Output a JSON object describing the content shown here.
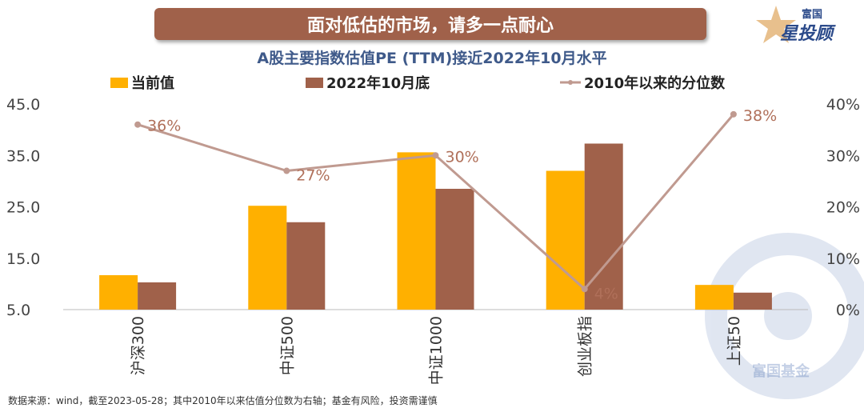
{
  "banner": "面对低估的市场，请多一点耐心",
  "logo": {
    "top": "富国",
    "bottom": "星投顾",
    "watermark": "富国基金"
  },
  "chart_data": {
    "type": "bar",
    "title": "A股主要指数估值PE (TTM)接近2022年10月水平",
    "categories": [
      "沪深300",
      "中证500",
      "中证1000",
      "创业板指",
      "上证50"
    ],
    "series": [
      {
        "name": "当前值",
        "type": "bar",
        "axis": "left",
        "color": "#ffb000",
        "values": [
          11.7,
          25.2,
          35.6,
          32.0,
          9.8
        ]
      },
      {
        "name": "2022年10月底",
        "type": "bar",
        "axis": "left",
        "color": "#a0614a",
        "values": [
          10.3,
          22.0,
          28.5,
          37.3,
          8.3
        ]
      },
      {
        "name": "2010年以来的分位数",
        "type": "line",
        "axis": "right",
        "color": "#c09a90",
        "values": [
          36,
          27,
          30,
          4,
          38
        ],
        "labels": [
          "36%",
          "27%",
          "30%",
          "4%",
          "38%"
        ]
      }
    ],
    "left_axis": {
      "range": [
        5,
        45
      ],
      "ticks": [
        "45.0",
        "35.0",
        "25.0",
        "15.0",
        "5.0"
      ]
    },
    "right_axis": {
      "range": [
        0,
        40
      ],
      "ticks": [
        "40%",
        "30%",
        "20%",
        "10%",
        "0%"
      ]
    },
    "grid": false,
    "legend_position": "top"
  },
  "note": "数据来源：wind，截至2023-05-28；其中2010年以来估值分位数为右轴；基金有风险，投资需谨慎"
}
